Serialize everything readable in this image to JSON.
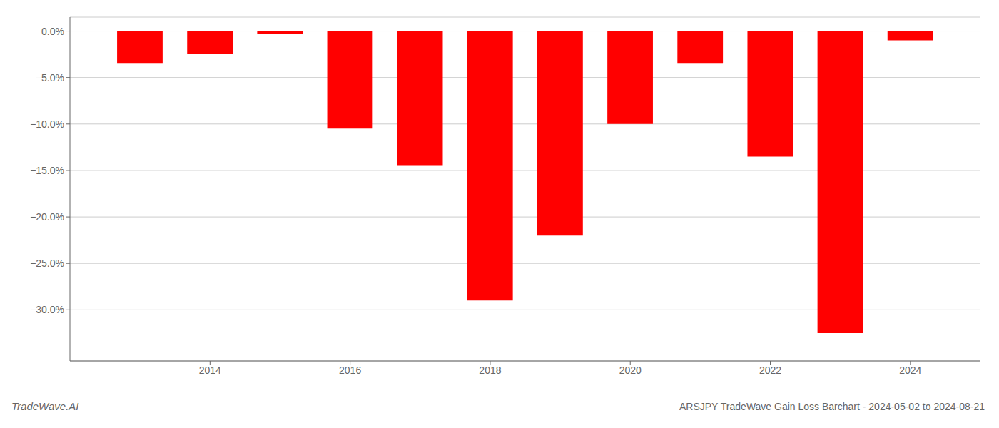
{
  "chart_data": {
    "type": "bar",
    "x": [
      2013,
      2014,
      2015,
      2016,
      2017,
      2018,
      2019,
      2020,
      2021,
      2022,
      2023,
      2024
    ],
    "values": [
      -3.5,
      -2.5,
      -0.3,
      -10.5,
      -14.5,
      -29.0,
      -22.0,
      -10.0,
      -3.5,
      -13.5,
      -32.5,
      -1.0
    ],
    "color": "#ff0000",
    "xlim": [
      2012,
      2025
    ],
    "xticks": [
      2014,
      2016,
      2018,
      2020,
      2022,
      2024
    ],
    "ylim": [
      -35.5,
      1.5
    ],
    "yticks": [
      {
        "value": 0,
        "label": "0.0%"
      },
      {
        "value": -5,
        "label": "−5.0%"
      },
      {
        "value": -10,
        "label": "−10.0%"
      },
      {
        "value": -15,
        "label": "−15.0%"
      },
      {
        "value": -20,
        "label": "−20.0%"
      },
      {
        "value": -25,
        "label": "−25.0%"
      },
      {
        "value": -30,
        "label": "−30.0%"
      }
    ],
    "grid": "y",
    "annotations": [
      "TradeWave.AI",
      "ARSJPY TradeWave Gain Loss Barchart - 2024-05-02 to 2024-08-21"
    ]
  }
}
